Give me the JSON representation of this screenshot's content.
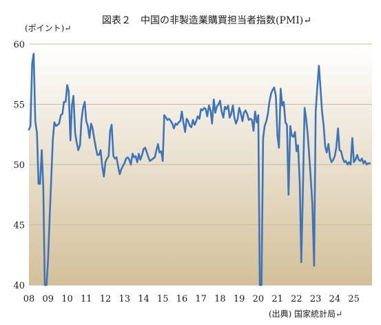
{
  "title": "図表２　中国の非製造業購買担当者指数(PMI)↵",
  "unit_label": "(ポイント)↵",
  "source": "(出典) 国家統計局↵",
  "colors": {
    "line": "#3f74b8",
    "plot_top": "#ffffff",
    "plot_bottom": "#d3c09a",
    "grid": "#c8bca0"
  },
  "chart_data": {
    "type": "line",
    "title": "図表２　中国の非製造業購買担当者指数(PMI)↵",
    "ylabel": "(ポイント)↵",
    "xlabel": "",
    "ylim": [
      40,
      60
    ],
    "xlim": [
      2008.0,
      2025.95
    ],
    "grid": "horizontal",
    "y_ticks": [
      40,
      45,
      50,
      55,
      60
    ],
    "x_ticks": [
      {
        "label": "08",
        "x": 2008.0
      },
      {
        "label": "09",
        "x": 2009.0
      },
      {
        "label": "10",
        "x": 2010.0
      },
      {
        "label": "11",
        "x": 2011.0
      },
      {
        "label": "12",
        "x": 2012.0
      },
      {
        "label": "13",
        "x": 2013.0
      },
      {
        "label": "14",
        "x": 2014.0
      },
      {
        "label": "15",
        "x": 2015.0
      },
      {
        "label": "16",
        "x": 2016.0
      },
      {
        "label": "17",
        "x": 2017.0
      },
      {
        "label": "18",
        "x": 2018.0
      },
      {
        "label": "19",
        "x": 2019.0
      },
      {
        "label": "20",
        "x": 2020.0
      },
      {
        "label": "21",
        "x": 2021.0
      },
      {
        "label": "22",
        "x": 2022.0
      },
      {
        "label": "23",
        "x": 2023.0
      },
      {
        "label": "24",
        "x": 2024.0
      },
      {
        "label": "25",
        "x": 2025.0
      }
    ],
    "series": [
      {
        "x": [
          2008.0,
          2008.08,
          2008.17,
          2008.25,
          2008.33,
          2008.42,
          2008.5,
          2008.58,
          2008.67,
          2008.75,
          2008.83,
          2008.92,
          2009.0,
          2009.08,
          2009.17,
          2009.25,
          2009.33,
          2009.42,
          2009.5,
          2009.58,
          2009.67,
          2009.75,
          2009.83,
          2009.92,
          2010.0,
          2010.08,
          2010.17,
          2010.25,
          2010.33,
          2010.42,
          2010.5,
          2010.58,
          2010.67,
          2010.75,
          2010.83,
          2010.92,
          2011.0,
          2011.08,
          2011.17,
          2011.25,
          2011.33,
          2011.42,
          2011.5,
          2011.58,
          2011.67,
          2011.75,
          2011.83,
          2011.92,
          2012.0,
          2012.08,
          2012.17,
          2012.25,
          2012.33,
          2012.42,
          2012.5,
          2012.58,
          2012.67,
          2012.75,
          2012.83,
          2012.92,
          2013.0,
          2013.08,
          2013.17,
          2013.25,
          2013.33,
          2013.42,
          2013.5,
          2013.58,
          2013.67,
          2013.75,
          2013.83,
          2013.92,
          2014.0,
          2014.08,
          2014.17,
          2014.25,
          2014.33,
          2014.42,
          2014.5,
          2014.58,
          2014.67,
          2014.75,
          2014.83,
          2014.92,
          2015.0,
          2015.08,
          2015.17,
          2015.25,
          2015.33,
          2015.42,
          2015.5,
          2015.58,
          2015.67,
          2015.75,
          2015.83,
          2015.92,
          2016.0,
          2016.08,
          2016.17,
          2016.25,
          2016.33,
          2016.42,
          2016.5,
          2016.58,
          2016.67,
          2016.75,
          2016.83,
          2016.92,
          2017.0,
          2017.08,
          2017.17,
          2017.25,
          2017.33,
          2017.42,
          2017.5,
          2017.58,
          2017.67,
          2017.75,
          2017.83,
          2017.92,
          2018.0,
          2018.08,
          2018.17,
          2018.25,
          2018.33,
          2018.42,
          2018.5,
          2018.58,
          2018.67,
          2018.75,
          2018.83,
          2018.92,
          2019.0,
          2019.08,
          2019.17,
          2019.25,
          2019.33,
          2019.42,
          2019.5,
          2019.58,
          2019.67,
          2019.75,
          2019.83,
          2019.92,
          2020.0,
          2020.08,
          2020.17,
          2020.25,
          2020.33,
          2020.42,
          2020.5,
          2020.58,
          2020.67,
          2020.75,
          2020.83,
          2020.92,
          2021.0,
          2021.08,
          2021.17,
          2021.25,
          2021.33,
          2021.42,
          2021.5,
          2021.58,
          2021.67,
          2021.75,
          2021.83,
          2021.92,
          2022.0,
          2022.08,
          2022.17,
          2022.25,
          2022.33,
          2022.42,
          2022.5,
          2022.58,
          2022.67,
          2022.75,
          2022.83,
          2022.92,
          2023.0,
          2023.08,
          2023.17,
          2023.25,
          2023.33,
          2023.42,
          2023.5,
          2023.58,
          2023.67,
          2023.75,
          2023.83,
          2023.92,
          2024.0,
          2024.08,
          2024.17,
          2024.25,
          2024.33,
          2024.42,
          2024.5,
          2024.58,
          2024.67,
          2024.75,
          2024.83,
          2024.92,
          2025.0,
          2025.08,
          2025.17,
          2025.25,
          2025.33,
          2025.42,
          2025.5,
          2025.58,
          2025.67,
          2025.75,
          2025.83
        ],
        "y": [
          52.9,
          53.2,
          58.4,
          59.2,
          53.6,
          52.6,
          48.4,
          48.4,
          51.2,
          48.2,
          40.0,
          40.0,
          42.0,
          45.5,
          49.0,
          52.1,
          53.5,
          53.2,
          53.3,
          53.4,
          54.1,
          54.2,
          55.2,
          55.2,
          56.6,
          56.1,
          52.0,
          54.9,
          55.7,
          52.6,
          51.8,
          51.2,
          51.6,
          53.7,
          54.7,
          55.2,
          53.6,
          53.2,
          52.2,
          53.4,
          53.0,
          52.1,
          51.4,
          50.8,
          50.8,
          51.2,
          49.9,
          49.0,
          50.2,
          50.5,
          50.7,
          52.8,
          53.3,
          50.7,
          50.5,
          50.6,
          49.8,
          49.2,
          49.6,
          49.9,
          50.1,
          50.5,
          50.6,
          50.4,
          50.0,
          50.9,
          50.6,
          50.7,
          50.2,
          50.9,
          50.4,
          50.8,
          51.3,
          51.4,
          51.0,
          50.6,
          50.3,
          50.4,
          50.5,
          50.6,
          51.2,
          51.7,
          51.0,
          51.1,
          50.3,
          54.1,
          53.9,
          53.7,
          53.8,
          53.6,
          53.4,
          53.0,
          53.4,
          53.3,
          53.5,
          53.6,
          54.4,
          53.5,
          52.7,
          53.8,
          53.6,
          53.2,
          53.1,
          53.7,
          53.3,
          53.6,
          54.0,
          53.8,
          54.6,
          54.5,
          54.7,
          54.6,
          54.0,
          54.9,
          54.5,
          53.4,
          55.4,
          54.3,
          54.8,
          55.0,
          55.3,
          54.4,
          53.9,
          54.8,
          54.6,
          54.9,
          53.9,
          54.2,
          54.9,
          53.9,
          53.4,
          53.8,
          54.7,
          54.3,
          53.6,
          54.3,
          54.5,
          54.2,
          53.7,
          53.8,
          53.7,
          52.8,
          54.4,
          53.5,
          54.1,
          40.0,
          40.0,
          52.2,
          53.2,
          53.6,
          54.2,
          55.2,
          55.9,
          56.2,
          56.4,
          55.7,
          52.4,
          51.4,
          56.3,
          54.9,
          55.2,
          53.5,
          53.3,
          47.5,
          53.2,
          52.4,
          52.3,
          52.7,
          51.1,
          51.6,
          48.4,
          41.9,
          47.8,
          54.7,
          53.8,
          52.6,
          50.6,
          48.7,
          46.7,
          41.6,
          54.4,
          56.3,
          58.2,
          56.4,
          54.5,
          53.2,
          51.5,
          51.0,
          51.7,
          50.6,
          50.2,
          50.4,
          50.7,
          51.4,
          53.0,
          51.2,
          51.1,
          50.5,
          50.2,
          50.3,
          50.0,
          50.2,
          50.0,
          52.2,
          50.2,
          50.4,
          50.8,
          50.4,
          50.3,
          50.5,
          50.1,
          50.3,
          50.0,
          50.1,
          50.1
        ]
      }
    ]
  }
}
